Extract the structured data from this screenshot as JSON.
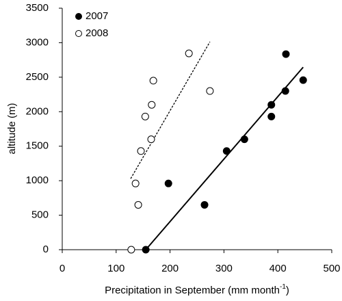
{
  "chart_data": {
    "type": "scatter",
    "xlabel": "Precipitation in September  (mm month",
    "xlabel_sup": "-1",
    "xlabel_end": ")",
    "ylabel": "altitude (m)",
    "xlim": [
      0,
      500
    ],
    "xticks": [
      0,
      100,
      200,
      300,
      400,
      500
    ],
    "ylim": [
      0,
      3500
    ],
    "yticks": [
      0,
      500,
      1000,
      1500,
      2000,
      2500,
      3000,
      3500
    ],
    "legend": "top-left",
    "series": [
      {
        "name": "2007",
        "color": "#000000",
        "filled": true,
        "x": [
          155,
          197,
          264,
          305,
          338,
          388,
          388,
          414,
          415,
          447
        ],
        "values": [
          0,
          960,
          650,
          1430,
          1600,
          2100,
          1930,
          2300,
          2835,
          2458
        ],
        "trend": {
          "style": "solid",
          "x": [
            155,
            447
          ],
          "values": [
            0,
            2645
          ]
        }
      },
      {
        "name": "2008",
        "color": "#000000",
        "filled": false,
        "x": [
          128,
          141,
          136,
          146,
          154,
          165,
          166,
          169,
          235,
          274
        ],
        "values": [
          0,
          650,
          960,
          1430,
          1930,
          1600,
          2100,
          2450,
          2845,
          2300
        ],
        "trend": {
          "style": "dashed",
          "x": [
            127,
            274
          ],
          "values": [
            1030,
            3013
          ]
        }
      }
    ]
  }
}
